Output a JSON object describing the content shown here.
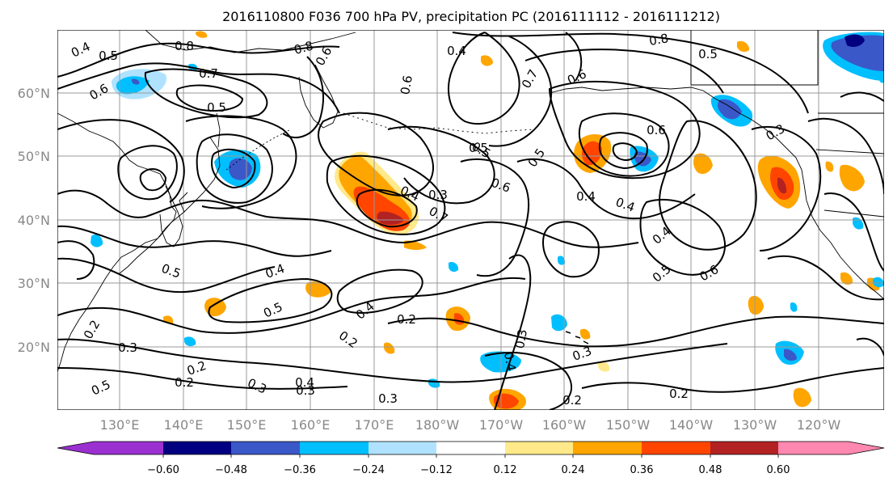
{
  "title": "2016110800 F036 700 hPa PV, precipitation PC (2016111112 - 2016111212)",
  "lat_labels": [
    "60°N",
    "50°N",
    "40°N",
    "30°N",
    "20°N"
  ],
  "lon_labels": [
    "130°E",
    "140°E",
    "150°E",
    "160°E",
    "170°E",
    "180°W",
    "170°W",
    "160°W",
    "150°W",
    "140°W",
    "130°W",
    "120°W"
  ],
  "colorbar": {
    "ticks": [
      "−0.60",
      "−0.48",
      "−0.36",
      "−0.24",
      "−0.12",
      "0.12",
      "0.24",
      "0.36",
      "0.48",
      "0.60"
    ],
    "colors": [
      "#9b30d0",
      "#000080",
      "#3a58c8",
      "#00bfff",
      "#b0e2ff",
      "#ffffff",
      "#ffe98a",
      "#ffa500",
      "#ff4500",
      "#b22222",
      "#ff88b0"
    ]
  },
  "contour_labels": [
    {
      "text": "0.4"
    },
    {
      "text": "0.5"
    },
    {
      "text": "0.8"
    },
    {
      "text": "0.7"
    },
    {
      "text": "0.6"
    },
    {
      "text": "0.5"
    },
    {
      "text": "0.8"
    },
    {
      "text": "0.6"
    },
    {
      "text": "0.4"
    },
    {
      "text": "0.6"
    },
    {
      "text": "0.8"
    },
    {
      "text": "0.5"
    },
    {
      "text": "0.7"
    },
    {
      "text": "0.6"
    },
    {
      "text": "0.5"
    },
    {
      "text": "0.6"
    },
    {
      "text": "0.4"
    },
    {
      "text": "0.3"
    },
    {
      "text": "0.7"
    },
    {
      "text": "0.4"
    },
    {
      "text": "0.4"
    },
    {
      "text": "0.5"
    },
    {
      "text": "0.5"
    },
    {
      "text": "0.6"
    },
    {
      "text": "0.4"
    },
    {
      "text": "0.5"
    },
    {
      "text": "0.2"
    },
    {
      "text": "0.4"
    },
    {
      "text": "0.2"
    },
    {
      "text": "0.3"
    },
    {
      "text": "0.2"
    },
    {
      "text": "0.3"
    },
    {
      "text": "0.2"
    },
    {
      "text": "0.3"
    },
    {
      "text": "0.5"
    },
    {
      "text": "0.2"
    },
    {
      "text": "0.4"
    },
    {
      "text": "0.3"
    },
    {
      "text": "0.3"
    },
    {
      "text": "0.4"
    },
    {
      "text": "0.2"
    },
    {
      "text": "0.2"
    },
    {
      "text": "0.3"
    },
    {
      "text": "0.5"
    },
    {
      "text": "0.6"
    },
    {
      "text": "0.5"
    },
    {
      "text": "0.4"
    },
    {
      "text": "0.3"
    }
  ]
}
